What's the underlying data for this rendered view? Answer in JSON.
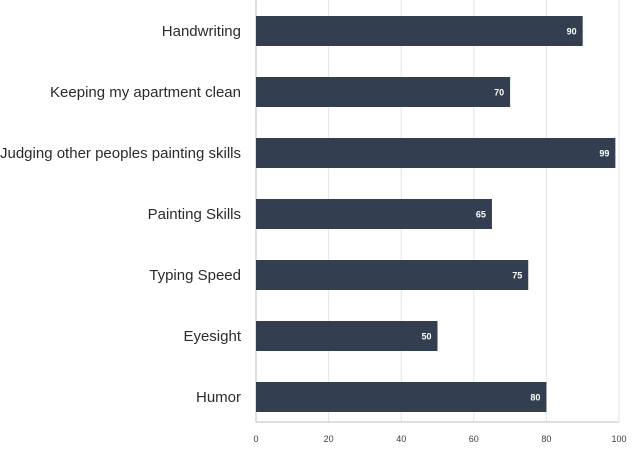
{
  "chart_data": {
    "type": "bar",
    "orientation": "horizontal",
    "title": "",
    "xlabel": "",
    "ylabel": "",
    "categories": [
      "Handwriting",
      "Keeping my apartment clean",
      "Judging other peoples painting skills",
      "Painting Skills",
      "Typing Speed",
      "Eyesight",
      "Humor"
    ],
    "values": [
      90,
      70,
      99,
      65,
      75,
      50,
      80
    ],
    "data_labels": [
      "90",
      "70",
      "99",
      "65",
      "75",
      "50",
      "80"
    ],
    "xlim": [
      0,
      100
    ],
    "x_ticks": [
      0,
      20,
      40,
      60,
      80,
      100
    ],
    "x_tick_labels": [
      "0",
      "20",
      "40",
      "60",
      "80",
      "100"
    ],
    "grid": "vertical",
    "legend": "none",
    "bar_color": "#333f50",
    "data_label_color": "#ffffff"
  }
}
